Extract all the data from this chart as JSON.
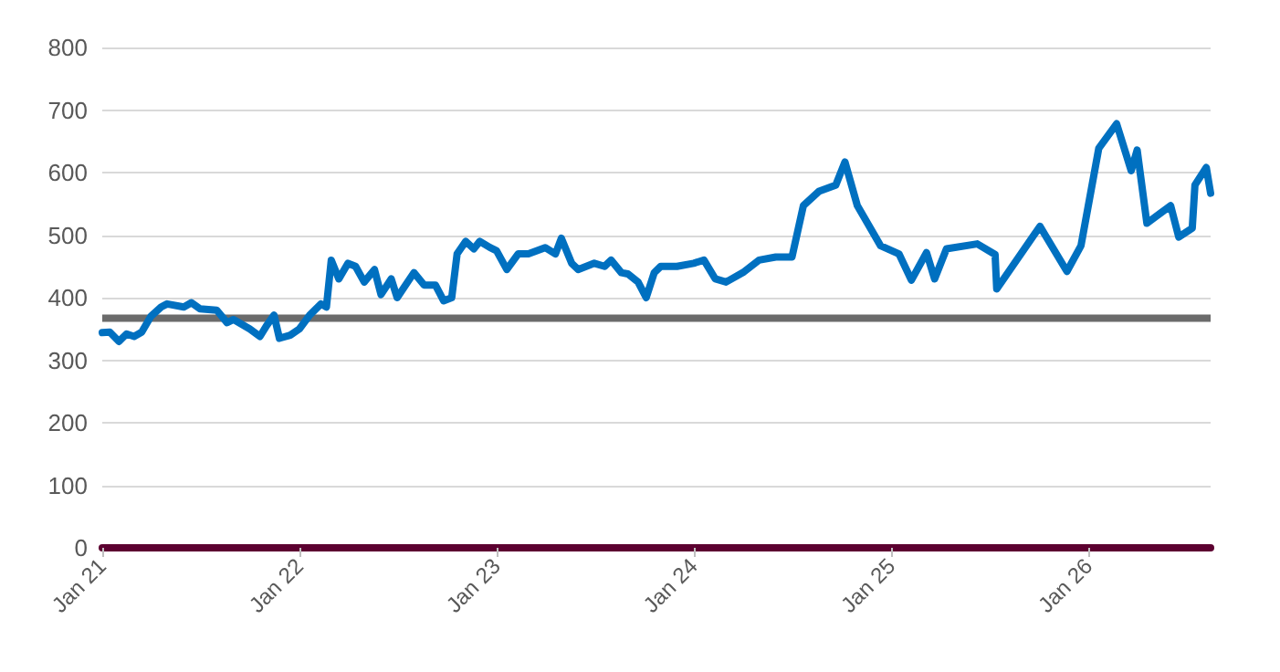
{
  "chart_data": {
    "type": "line",
    "xlim": [
      "2021-01-01",
      "2026-08-15"
    ],
    "ylim": [
      0,
      800
    ],
    "yticks": [
      0,
      100,
      200,
      300,
      400,
      500,
      600,
      700,
      800
    ],
    "xticks": [
      {
        "value": "2021-01-01",
        "label": "Jan 21"
      },
      {
        "value": "2022-01-01",
        "label": "Jan 22"
      },
      {
        "value": "2023-01-01",
        "label": "Jan 23"
      },
      {
        "value": "2024-01-01",
        "label": "Jan 24"
      },
      {
        "value": "2025-01-01",
        "label": "Jan 25"
      },
      {
        "value": "2026-01-01",
        "label": "Jan 26"
      }
    ],
    "grid": "y",
    "marker": "none",
    "line_style": "solid",
    "ref_lines": [
      {
        "axis": "y",
        "value": 367,
        "color": "#6b6b6b"
      }
    ],
    "series": [
      {
        "color": "#0070c0",
        "x": [
          "2021-01-01",
          "2021-01-15",
          "2021-02-01",
          "2021-02-15",
          "2021-03-01",
          "2021-03-15",
          "2021-04-01",
          "2021-04-20",
          "2021-05-01",
          "2021-06-01",
          "2021-06-15",
          "2021-07-01",
          "2021-08-01",
          "2021-08-20",
          "2021-09-01",
          "2021-10-01",
          "2021-10-20",
          "2021-11-01",
          "2021-11-15",
          "2021-11-25",
          "2021-12-15",
          "2022-01-01",
          "2022-01-20",
          "2022-02-10",
          "2022-02-20",
          "2022-03-01",
          "2022-03-15",
          "2022-04-01",
          "2022-04-15",
          "2022-05-01",
          "2022-05-20",
          "2022-06-01",
          "2022-06-20",
          "2022-07-01",
          "2022-08-01",
          "2022-08-20",
          "2022-09-10",
          "2022-09-25",
          "2022-10-10",
          "2022-10-20",
          "2022-11-05",
          "2022-11-20",
          "2022-12-01",
          "2022-12-20",
          "2023-01-01",
          "2023-01-20",
          "2023-02-10",
          "2023-03-01",
          "2023-04-01",
          "2023-04-20",
          "2023-05-01",
          "2023-05-20",
          "2023-06-01",
          "2023-07-01",
          "2023-07-20",
          "2023-08-01",
          "2023-08-20",
          "2023-09-01",
          "2023-09-20",
          "2023-10-05",
          "2023-10-20",
          "2023-11-01",
          "2023-12-01",
          "2024-01-01",
          "2024-01-20",
          "2024-02-10",
          "2024-03-01",
          "2024-04-01",
          "2024-05-01",
          "2024-06-01",
          "2024-07-01",
          "2024-07-22",
          "2024-08-20",
          "2024-09-20",
          "2024-10-07",
          "2024-10-30",
          "2024-12-12",
          "2025-01-15",
          "2025-02-07",
          "2025-03-07",
          "2025-03-22",
          "2025-04-13",
          "2025-06-09",
          "2025-07-12",
          "2025-07-15",
          "2025-10-03",
          "2025-11-22",
          "2025-12-18",
          "2026-01-20",
          "2026-02-22",
          "2026-03-21",
          "2026-04-01",
          "2026-04-19",
          "2026-06-02",
          "2026-06-17",
          "2026-07-12",
          "2026-07-17",
          "2026-08-07",
          "2026-08-15"
        ],
        "values": [
          344,
          345,
          330,
          342,
          338,
          345,
          370,
          385,
          390,
          385,
          392,
          382,
          380,
          360,
          365,
          350,
          338,
          355,
          372,
          335,
          340,
          350,
          372,
          390,
          385,
          460,
          430,
          455,
          450,
          425,
          445,
          405,
          430,
          400,
          440,
          420,
          420,
          395,
          400,
          470,
          490,
          478,
          490,
          480,
          475,
          445,
          470,
          470,
          480,
          470,
          495,
          455,
          445,
          455,
          450,
          460,
          440,
          438,
          425,
          400,
          440,
          450,
          450,
          455,
          460,
          430,
          425,
          440,
          460,
          465,
          465,
          547,
          570,
          580,
          617,
          547,
          483,
          470,
          428,
          472,
          430,
          478,
          486,
          469,
          414,
          514,
          442,
          483,
          639,
          678,
          603,
          636,
          519,
          547,
          497,
          511,
          580,
          608,
          567
        ]
      }
    ]
  }
}
